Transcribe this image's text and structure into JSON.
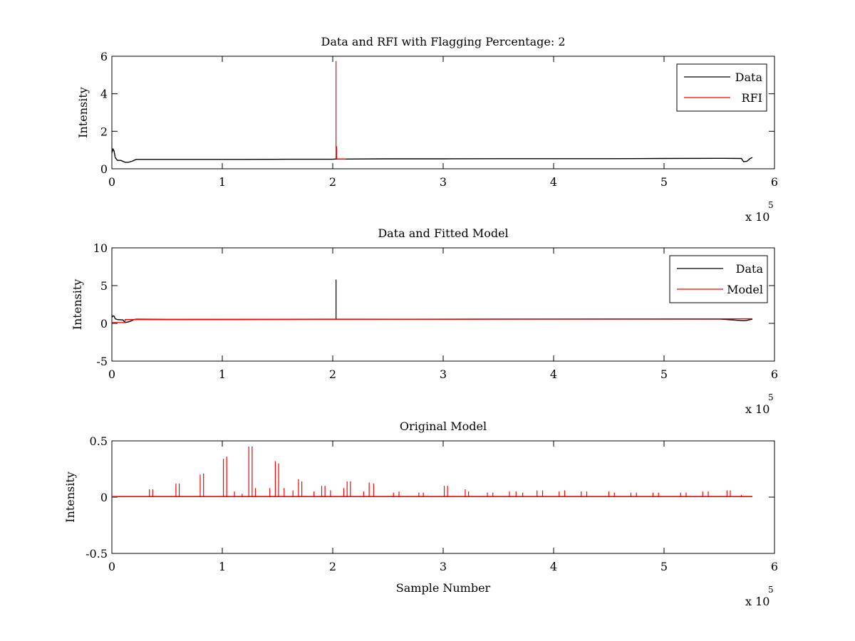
{
  "chart_data": [
    {
      "type": "line",
      "title": "Data and RFI with Flagging Percentage: 2",
      "xlabel": "",
      "ylabel": "Intensity",
      "xlim": [
        0,
        6
      ],
      "ylim": [
        0,
        6
      ],
      "x_multiplier_label": "x 10",
      "x_multiplier_exp": "5",
      "xticks": [
        "0",
        "1",
        "2",
        "3",
        "4",
        "5",
        "6"
      ],
      "yticks": [
        "0",
        "2",
        "4",
        "6"
      ],
      "legend_position": "top-right",
      "colors": {
        "Data": "#000000",
        "RFI": "#ff0000"
      },
      "series": [
        {
          "name": "Data",
          "x": [
            0,
            0.01,
            0.02,
            0.03,
            0.05,
            0.08,
            0.12,
            0.15,
            0.18,
            0.2,
            0.22,
            0.4,
            0.8,
            1.2,
            1.6,
            2.0,
            2.02,
            2.1,
            2.5,
            3.0,
            3.5,
            4.0,
            4.5,
            5.0,
            5.5,
            5.7,
            5.72,
            5.75,
            5.78,
            5.8
          ],
          "y": [
            0.85,
            1.05,
            0.95,
            0.6,
            0.45,
            0.45,
            0.35,
            0.35,
            0.4,
            0.45,
            0.5,
            0.5,
            0.5,
            0.5,
            0.51,
            0.51,
            0.52,
            0.52,
            0.53,
            0.53,
            0.54,
            0.54,
            0.54,
            0.55,
            0.56,
            0.55,
            0.38,
            0.4,
            0.55,
            0.6
          ]
        },
        {
          "name": "RFI",
          "spikes": [
            {
              "x": 2.03,
              "y": 5.75
            },
            {
              "x": 2.035,
              "y": 1.2
            }
          ],
          "segment": {
            "x": [
              2.04,
              2.12
            ],
            "y": 0.52
          }
        }
      ]
    },
    {
      "type": "line",
      "title": "Data and Fitted Model",
      "xlabel": "",
      "ylabel": "Intensity",
      "xlim": [
        0,
        6
      ],
      "ylim": [
        -5,
        10
      ],
      "x_multiplier_label": "x 10",
      "x_multiplier_exp": "5",
      "xticks": [
        "0",
        "1",
        "2",
        "3",
        "4",
        "5",
        "6"
      ],
      "yticks": [
        "-5",
        "0",
        "5",
        "10"
      ],
      "legend_position": "top-right",
      "colors": {
        "Data": "#000000",
        "Model": "#ff0000"
      },
      "series": [
        {
          "name": "Data",
          "x": [
            0,
            0.01,
            0.02,
            0.03,
            0.05,
            0.1,
            0.12,
            0.15,
            0.18,
            0.2,
            0.22,
            0.5,
            1.0,
            1.5,
            2.0,
            2.02,
            2.5,
            3.0,
            3.5,
            4.0,
            4.5,
            5.0,
            5.5,
            5.72,
            5.75,
            5.78,
            5.8
          ],
          "y": [
            0.8,
            1.0,
            0.95,
            0.6,
            0.5,
            0.45,
            0.1,
            0.2,
            0.35,
            0.5,
            0.55,
            0.52,
            0.52,
            0.53,
            0.55,
            0.55,
            0.55,
            0.55,
            0.56,
            0.56,
            0.57,
            0.57,
            0.58,
            0.35,
            0.4,
            0.5,
            0.55
          ],
          "spikes": [
            {
              "x": 2.03,
              "y": 5.8
            }
          ]
        },
        {
          "name": "Model",
          "x": [
            0,
            0.12,
            0.12,
            0.22,
            5.8
          ],
          "y": [
            0.1,
            0.1,
            0.5,
            0.5,
            0.6
          ]
        }
      ]
    },
    {
      "type": "line",
      "title": "Original Model",
      "xlabel": "Sample Number",
      "ylabel": "Intensity",
      "xlim": [
        0,
        6
      ],
      "ylim": [
        -0.5,
        0.5
      ],
      "x_multiplier_label": "x 10",
      "x_multiplier_exp": "5",
      "xticks": [
        "0",
        "1",
        "2",
        "3",
        "4",
        "5",
        "6"
      ],
      "yticks": [
        "-0.5",
        "0",
        "0.5"
      ],
      "colors": {
        "Model": "#ff0000"
      },
      "series": [
        {
          "baseline": {
            "x": [
              0,
              5.8
            ],
            "y": 0.005
          },
          "spikes": [
            {
              "x": 0.34,
              "y": 0.07
            },
            {
              "x": 0.37,
              "y": 0.07
            },
            {
              "x": 0.58,
              "y": 0.12
            },
            {
              "x": 0.61,
              "y": 0.12
            },
            {
              "x": 0.8,
              "y": 0.2
            },
            {
              "x": 0.83,
              "y": 0.21
            },
            {
              "x": 1.01,
              "y": 0.34
            },
            {
              "x": 1.04,
              "y": 0.36
            },
            {
              "x": 1.11,
              "y": 0.05
            },
            {
              "x": 1.18,
              "y": 0.03
            },
            {
              "x": 1.24,
              "y": 0.45
            },
            {
              "x": 1.27,
              "y": 0.45
            },
            {
              "x": 1.3,
              "y": 0.08
            },
            {
              "x": 1.43,
              "y": 0.08
            },
            {
              "x": 1.48,
              "y": 0.32
            },
            {
              "x": 1.51,
              "y": 0.3
            },
            {
              "x": 1.56,
              "y": 0.08
            },
            {
              "x": 1.64,
              "y": 0.06
            },
            {
              "x": 1.69,
              "y": 0.16
            },
            {
              "x": 1.72,
              "y": 0.14
            },
            {
              "x": 1.83,
              "y": 0.05
            },
            {
              "x": 1.9,
              "y": 0.1
            },
            {
              "x": 1.93,
              "y": 0.1
            },
            {
              "x": 1.98,
              "y": 0.06
            },
            {
              "x": 2.1,
              "y": 0.08
            },
            {
              "x": 2.13,
              "y": 0.14
            },
            {
              "x": 2.16,
              "y": 0.14
            },
            {
              "x": 2.28,
              "y": 0.05
            },
            {
              "x": 2.33,
              "y": 0.13
            },
            {
              "x": 2.37,
              "y": 0.12
            },
            {
              "x": 2.55,
              "y": 0.04
            },
            {
              "x": 2.6,
              "y": 0.05
            },
            {
              "x": 2.78,
              "y": 0.04
            },
            {
              "x": 2.82,
              "y": 0.04
            },
            {
              "x": 3.01,
              "y": 0.1
            },
            {
              "x": 3.04,
              "y": 0.1
            },
            {
              "x": 3.2,
              "y": 0.07
            },
            {
              "x": 3.23,
              "y": 0.05
            },
            {
              "x": 3.4,
              "y": 0.04
            },
            {
              "x": 3.45,
              "y": 0.04
            },
            {
              "x": 3.6,
              "y": 0.05
            },
            {
              "x": 3.66,
              "y": 0.05
            },
            {
              "x": 3.72,
              "y": 0.04
            },
            {
              "x": 3.85,
              "y": 0.06
            },
            {
              "x": 3.9,
              "y": 0.06
            },
            {
              "x": 4.05,
              "y": 0.05
            },
            {
              "x": 4.1,
              "y": 0.06
            },
            {
              "x": 4.25,
              "y": 0.05
            },
            {
              "x": 4.3,
              "y": 0.05
            },
            {
              "x": 4.5,
              "y": 0.05
            },
            {
              "x": 4.55,
              "y": 0.04
            },
            {
              "x": 4.7,
              "y": 0.04
            },
            {
              "x": 4.75,
              "y": 0.04
            },
            {
              "x": 4.9,
              "y": 0.04
            },
            {
              "x": 4.95,
              "y": 0.04
            },
            {
              "x": 5.15,
              "y": 0.04
            },
            {
              "x": 5.2,
              "y": 0.04
            },
            {
              "x": 5.35,
              "y": 0.05
            },
            {
              "x": 5.4,
              "y": 0.05
            },
            {
              "x": 5.57,
              "y": 0.06
            },
            {
              "x": 5.6,
              "y": 0.06
            },
            {
              "x": 5.7,
              "y": 0.02
            }
          ]
        }
      ]
    }
  ]
}
